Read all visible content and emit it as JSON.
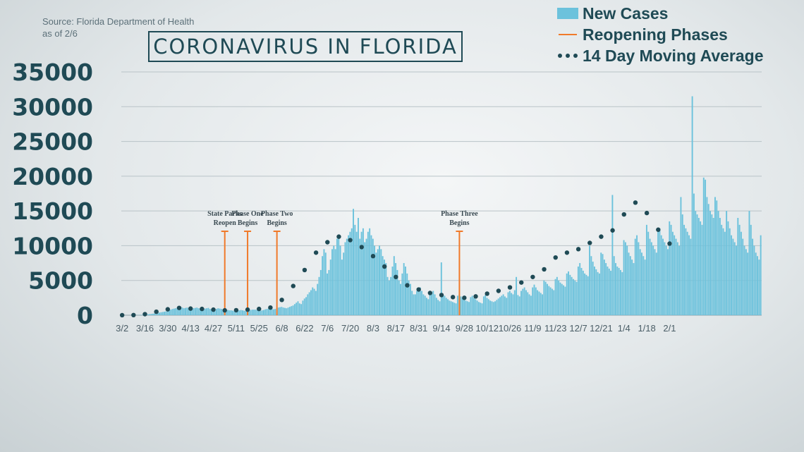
{
  "source_lines": [
    "Source: Florida Department of Health",
    "as of 2/6"
  ],
  "chart_data": {
    "type": "bar",
    "title": "CORONAVIRUS IN FLORIDA",
    "xlabel": "",
    "ylabel": "",
    "ylim": [
      0,
      35000
    ],
    "yticks": [
      35000,
      30000,
      25000,
      20000,
      15000,
      10000,
      5000,
      0
    ],
    "xticks": [
      "3/2",
      "3/16",
      "3/30",
      "4/13",
      "4/27",
      "5/11",
      "5/25",
      "6/8",
      "6/22",
      "7/6",
      "7/20",
      "8/3",
      "8/17",
      "8/31",
      "9/14",
      "9/28",
      "10/12",
      "10/26",
      "11/9",
      "11/23",
      "12/7",
      "12/21",
      "1/4",
      "1/18",
      "2/1"
    ],
    "grid": true,
    "legend_position": "top-right",
    "legend": [
      {
        "name": "New Cases",
        "kind": "bar",
        "color": "#6cc2dc"
      },
      {
        "name": "Reopening Phases",
        "kind": "line",
        "color": "#f07a2a"
      },
      {
        "name": "14 Day Moving Average",
        "kind": "dots",
        "color": "#1f4a55"
      }
    ],
    "x_start_date": "3/2",
    "series": [
      {
        "name": "New Cases",
        "kind": "bar",
        "color": "#6cc2dc",
        "values": [
          2,
          2,
          3,
          5,
          5,
          8,
          10,
          12,
          15,
          20,
          25,
          30,
          50,
          70,
          90,
          110,
          130,
          160,
          190,
          220,
          260,
          300,
          340,
          380,
          420,
          460,
          500,
          550,
          600,
          700,
          800,
          900,
          950,
          1000,
          1100,
          1150,
          1200,
          1100,
          1000,
          1050,
          1100,
          1000,
          950,
          900,
          1000,
          1050,
          1100,
          1000,
          950,
          900,
          900,
          950,
          1000,
          1050,
          900,
          850,
          800,
          850,
          900,
          1000,
          950,
          900,
          850,
          800,
          750,
          750,
          700,
          700,
          650,
          600,
          650,
          700,
          700,
          750,
          700,
          650,
          600,
          650,
          700,
          750,
          800,
          800,
          800,
          750,
          700,
          650,
          700,
          750,
          850,
          900,
          1000,
          950,
          900,
          850,
          900,
          1000,
          1100,
          1150,
          1200,
          1100,
          1050,
          1000,
          1100,
          1200,
          1300,
          1400,
          1600,
          1800,
          2000,
          1700,
          1600,
          2100,
          2400,
          2600,
          3000,
          3300,
          3600,
          4000,
          3800,
          3500,
          4500,
          5500,
          6500,
          8500,
          9500,
          9000,
          6000,
          6500,
          8000,
          9500,
          10000,
          9500,
          11000,
          11400,
          10000,
          8000,
          9000,
          10500,
          11000,
          11500,
          12000,
          12500,
          15300,
          13000,
          12000,
          14000,
          11000,
          12000,
          12500,
          10500,
          11000,
          12000,
          12500,
          11500,
          11000,
          10000,
          9000,
          9500,
          10000,
          9500,
          8500,
          8000,
          7500,
          5500,
          5000,
          5500,
          7000,
          8500,
          7500,
          6500,
          5000,
          4500,
          6000,
          7500,
          7000,
          6000,
          5000,
          4500,
          3500,
          3000,
          3000,
          3500,
          3800,
          4000,
          3500,
          3000,
          2800,
          2500,
          2300,
          3000,
          3200,
          3500,
          3000,
          2500,
          2200,
          2000,
          7600,
          3000,
          2800,
          2500,
          2300,
          2100,
          2000,
          1900,
          1800,
          1700,
          2800,
          3000,
          2700,
          2500,
          2300,
          2100,
          2000,
          1900,
          2600,
          2800,
          2500,
          2300,
          2100,
          1900,
          1800,
          1700,
          2700,
          2900,
          2500,
          2300,
          2100,
          2000,
          1900,
          2000,
          2200,
          2400,
          2600,
          2800,
          3000,
          2700,
          2500,
          3300,
          3500,
          3200,
          3000,
          3600,
          5500,
          2900,
          2700,
          3500,
          3800,
          4000,
          3600,
          3300,
          3000,
          2800,
          4000,
          4400,
          4000,
          3600,
          3400,
          3200,
          3000,
          5000,
          4800,
          4500,
          4200,
          4000,
          3800,
          3600,
          5200,
          5500,
          5000,
          4700,
          4500,
          4300,
          4100,
          6000,
          6300,
          5800,
          5500,
          5200,
          5000,
          4800,
          7000,
          7500,
          6800,
          6400,
          6000,
          5800,
          5600,
          10000,
          8500,
          7700,
          7000,
          6600,
          6200,
          6000,
          9000,
          8800,
          8000,
          7500,
          7000,
          6700,
          6400,
          17300,
          8500,
          7500,
          7000,
          6800,
          6500,
          6200,
          10800,
          10500,
          10000,
          9000,
          8500,
          8000,
          7500,
          11000,
          11500,
          10500,
          9500,
          9000,
          8500,
          8000,
          13000,
          12000,
          11000,
          10500,
          10000,
          9500,
          9000,
          12000,
          12500,
          11500,
          11000,
          10500,
          10000,
          9500,
          13500,
          13000,
          12000,
          11500,
          11000,
          10500,
          10000,
          17000,
          14500,
          13000,
          12500,
          12000,
          11500,
          11000,
          31500,
          17500,
          15000,
          14500,
          14000,
          13500,
          13000,
          19800,
          19500,
          17000,
          16000,
          15000,
          14500,
          14000,
          17000,
          16500,
          15000,
          14000,
          13000,
          12500,
          12000,
          15000,
          13500,
          12500,
          11500,
          11000,
          10500,
          10000,
          14000,
          13000,
          12000,
          11000,
          10000,
          9500,
          9000,
          15000,
          13000,
          11000,
          10000,
          9000,
          8500,
          8000,
          11500
        ]
      },
      {
        "name": "14 Day Moving Average",
        "kind": "dots",
        "color": "#1f4a55",
        "x_days": [
          0,
          7,
          14,
          21,
          28,
          35,
          42,
          49,
          56,
          63,
          70,
          77,
          84,
          91,
          98,
          105,
          112,
          119,
          126,
          133,
          140,
          147,
          154,
          161,
          168,
          175,
          182,
          189,
          196,
          203,
          210,
          217,
          224,
          231,
          238,
          245,
          252,
          259,
          266,
          273,
          280,
          287,
          294,
          301,
          308,
          315,
          322,
          329,
          336
        ],
        "values": [
          5,
          20,
          150,
          500,
          850,
          1050,
          950,
          900,
          800,
          700,
          720,
          800,
          900,
          1100,
          2200,
          4200,
          6500,
          9000,
          10500,
          11300,
          10800,
          9800,
          8500,
          7000,
          5500,
          4300,
          3700,
          3200,
          2900,
          2600,
          2500,
          2700,
          3100,
          3500,
          4000,
          4700,
          5500,
          6600,
          8300,
          9000,
          9500,
          10400,
          11300,
          12200,
          14500,
          16200,
          14700,
          12300,
          10300
        ]
      }
    ],
    "annotations": [
      {
        "day": 63,
        "lines": [
          "State Parks",
          "Reopen"
        ],
        "color": "#f07a2a"
      },
      {
        "day": 77,
        "lines": [
          "Phase One",
          "Begins"
        ],
        "color": "#f07a2a"
      },
      {
        "day": 95,
        "lines": [
          "Phase Two",
          "Begins"
        ],
        "color": "#f07a2a"
      },
      {
        "day": 207,
        "lines": [
          "Phase Three",
          "Begins"
        ],
        "color": "#f07a2a"
      }
    ]
  }
}
